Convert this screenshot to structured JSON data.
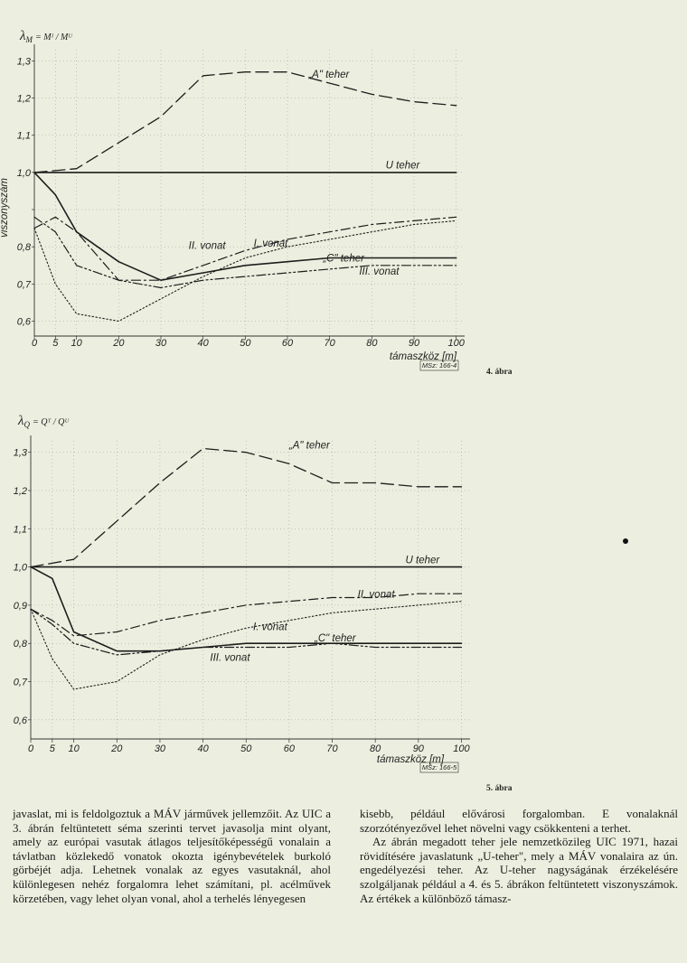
{
  "charts": [
    {
      "y_label_symbol": "λ",
      "y_label_sub": "M",
      "y_label_formula": "= Mᴵ / Mᵁ",
      "rotated_ylabel": "viszonyszám",
      "xlabel": "támaszköz [m]",
      "code": "MSz: 166-4",
      "figure": "4. ábra",
      "series_labels": [
        "„A\" teher",
        "U teher",
        "II. vonat",
        "I. vonat",
        "„C\" teher",
        "III. vonat"
      ]
    },
    {
      "y_label_symbol": "λ",
      "y_label_sub": "Q",
      "y_label_formula": "= Qᵀ / Qᵁ",
      "rotated_ylabel": "",
      "xlabel": "támaszköz [m]",
      "code": "MSz: 166-5",
      "figure": "5. ábra",
      "series_labels": [
        "„A\" teher",
        "U teher",
        "II. vonat",
        "I. vonat",
        "„C\" teher",
        "III. vonat"
      ]
    }
  ],
  "chart_data": [
    {
      "type": "line",
      "xlabel": "támaszköz [m]",
      "ylabel": "viszonyszám",
      "xticks": [
        0,
        5,
        10,
        20,
        30,
        40,
        50,
        60,
        70,
        80,
        90,
        100
      ],
      "yticks": [
        0.6,
        0.7,
        0.8,
        0.9,
        1.0,
        1.1,
        1.2,
        1.3
      ],
      "ytick_labels": [
        "0,6",
        "0,7",
        "0,8",
        "",
        "1,0",
        "1,1",
        "1,2",
        "1,3"
      ],
      "ylim": [
        0.56,
        1.33
      ],
      "xlim": [
        0,
        102
      ],
      "grid": true,
      "series": [
        {
          "name": "„A\" teher",
          "style": "longdash",
          "points": [
            [
              0,
              1.0
            ],
            [
              10,
              1.01
            ],
            [
              20,
              1.08
            ],
            [
              30,
              1.15
            ],
            [
              40,
              1.26
            ],
            [
              50,
              1.27
            ],
            [
              60,
              1.27
            ],
            [
              70,
              1.24
            ],
            [
              80,
              1.21
            ],
            [
              90,
              1.19
            ],
            [
              100,
              1.18
            ]
          ]
        },
        {
          "name": "U teher",
          "style": "solid",
          "points": [
            [
              0,
              1.0
            ],
            [
              100,
              1.0
            ]
          ]
        },
        {
          "name": "II. vonat",
          "style": "dashdot",
          "points": [
            [
              0,
              0.85
            ],
            [
              5,
              0.88
            ],
            [
              10,
              0.84
            ],
            [
              20,
              0.71
            ],
            [
              30,
              0.71
            ],
            [
              40,
              0.75
            ],
            [
              50,
              0.79
            ],
            [
              60,
              0.82
            ],
            [
              70,
              0.84
            ],
            [
              80,
              0.86
            ],
            [
              90,
              0.87
            ],
            [
              100,
              0.88
            ]
          ]
        },
        {
          "name": "I. vonat",
          "style": "dotted",
          "points": [
            [
              0,
              0.85
            ],
            [
              5,
              0.7
            ],
            [
              10,
              0.62
            ],
            [
              20,
              0.6
            ],
            [
              30,
              0.66
            ],
            [
              40,
              0.72
            ],
            [
              50,
              0.77
            ],
            [
              60,
              0.8
            ],
            [
              70,
              0.82
            ],
            [
              80,
              0.84
            ],
            [
              90,
              0.86
            ],
            [
              100,
              0.87
            ]
          ]
        },
        {
          "name": "„C\" teher",
          "style": "solid",
          "points": [
            [
              0,
              1.0
            ],
            [
              5,
              0.94
            ],
            [
              10,
              0.84
            ],
            [
              20,
              0.76
            ],
            [
              30,
              0.71
            ],
            [
              40,
              0.73
            ],
            [
              50,
              0.75
            ],
            [
              60,
              0.76
            ],
            [
              70,
              0.77
            ],
            [
              80,
              0.77
            ],
            [
              90,
              0.77
            ],
            [
              100,
              0.77
            ]
          ]
        },
        {
          "name": "III. vonat",
          "style": "dashdotdot",
          "points": [
            [
              0,
              0.88
            ],
            [
              5,
              0.84
            ],
            [
              10,
              0.75
            ],
            [
              20,
              0.71
            ],
            [
              30,
              0.69
            ],
            [
              40,
              0.71
            ],
            [
              50,
              0.72
            ],
            [
              60,
              0.73
            ],
            [
              70,
              0.74
            ],
            [
              80,
              0.75
            ],
            [
              90,
              0.75
            ],
            [
              100,
              0.75
            ]
          ]
        }
      ]
    },
    {
      "type": "line",
      "xlabel": "támaszköz [m]",
      "ylabel": "",
      "xticks": [
        0,
        5,
        10,
        20,
        30,
        40,
        50,
        60,
        70,
        80,
        90,
        100
      ],
      "yticks": [
        0.6,
        0.7,
        0.8,
        0.9,
        1.0,
        1.1,
        1.2,
        1.3
      ],
      "ytick_labels": [
        "0,6",
        "0,7",
        "0,8",
        "0,9",
        "1,0",
        "1,1",
        "1,2",
        "1,3"
      ],
      "ylim": [
        0.55,
        1.33
      ],
      "xlim": [
        0,
        102
      ],
      "grid": true,
      "series": [
        {
          "name": "„A\" teher",
          "style": "longdash",
          "points": [
            [
              0,
              1.0
            ],
            [
              10,
              1.02
            ],
            [
              20,
              1.12
            ],
            [
              30,
              1.22
            ],
            [
              40,
              1.31
            ],
            [
              50,
              1.3
            ],
            [
              60,
              1.27
            ],
            [
              70,
              1.22
            ],
            [
              80,
              1.22
            ],
            [
              90,
              1.21
            ],
            [
              100,
              1.21
            ]
          ]
        },
        {
          "name": "U teher",
          "style": "solid",
          "points": [
            [
              0,
              1.0
            ],
            [
              100,
              1.0
            ]
          ]
        },
        {
          "name": "II. vonat",
          "style": "dashdot",
          "points": [
            [
              0,
              0.89
            ],
            [
              5,
              0.86
            ],
            [
              10,
              0.82
            ],
            [
              20,
              0.83
            ],
            [
              30,
              0.86
            ],
            [
              40,
              0.88
            ],
            [
              50,
              0.9
            ],
            [
              60,
              0.91
            ],
            [
              70,
              0.92
            ],
            [
              80,
              0.92
            ],
            [
              90,
              0.93
            ],
            [
              100,
              0.93
            ]
          ]
        },
        {
          "name": "I. vonat",
          "style": "dotted",
          "points": [
            [
              0,
              0.89
            ],
            [
              5,
              0.76
            ],
            [
              10,
              0.68
            ],
            [
              20,
              0.7
            ],
            [
              30,
              0.77
            ],
            [
              40,
              0.81
            ],
            [
              50,
              0.84
            ],
            [
              60,
              0.86
            ],
            [
              70,
              0.88
            ],
            [
              80,
              0.89
            ],
            [
              90,
              0.9
            ],
            [
              100,
              0.91
            ]
          ]
        },
        {
          "name": "„C\" teher",
          "style": "solid",
          "points": [
            [
              0,
              1.0
            ],
            [
              5,
              0.97
            ],
            [
              10,
              0.83
            ],
            [
              20,
              0.78
            ],
            [
              30,
              0.78
            ],
            [
              40,
              0.79
            ],
            [
              50,
              0.8
            ],
            [
              60,
              0.8
            ],
            [
              70,
              0.8
            ],
            [
              80,
              0.8
            ],
            [
              90,
              0.8
            ],
            [
              100,
              0.8
            ]
          ]
        },
        {
          "name": "III. vonat",
          "style": "dashdotdot",
          "points": [
            [
              0,
              0.89
            ],
            [
              5,
              0.85
            ],
            [
              10,
              0.8
            ],
            [
              20,
              0.77
            ],
            [
              30,
              0.78
            ],
            [
              40,
              0.79
            ],
            [
              50,
              0.79
            ],
            [
              60,
              0.79
            ],
            [
              70,
              0.8
            ],
            [
              80,
              0.79
            ],
            [
              90,
              0.79
            ],
            [
              100,
              0.79
            ]
          ]
        }
      ]
    }
  ],
  "text": {
    "left": "javaslat, mi is feldolgoztuk a MÁV járművek jellemzőit. Az UIC a 3. ábrán feltüntetett séma szerinti tervet javasolja mint olyant, amely az európai vasutak átlagos teljesítőképességű vonalain a távlatban közlekedő vonatok okozta igénybevételek burkoló görbéjét adja. Lehetnek vonalak az egyes vasutaknál, ahol különlegesen nehéz forgalomra lehet számítani, pl. acélművek körzetében, vagy lehet olyan vonal, ahol a terhelés lényegesen",
    "right_p1": "kisebb, például elővárosi forgalomban. E vonalaknál szorzótényezővel lehet növelni vagy csökkenteni a terhet.",
    "right_p2": "Az ábrán megadott teher jele nemzetközileg UIC 1971, hazai rövidítésére javaslatunk „U-teher\", mely a MÁV vonalaira az ún. engedélyezési teher. Az U-teher nagyságának érzékelésére szolgáljanak például a 4. és 5. ábrákon feltüntetett viszonyszámok. Az értékek a különböző támasz-"
  }
}
